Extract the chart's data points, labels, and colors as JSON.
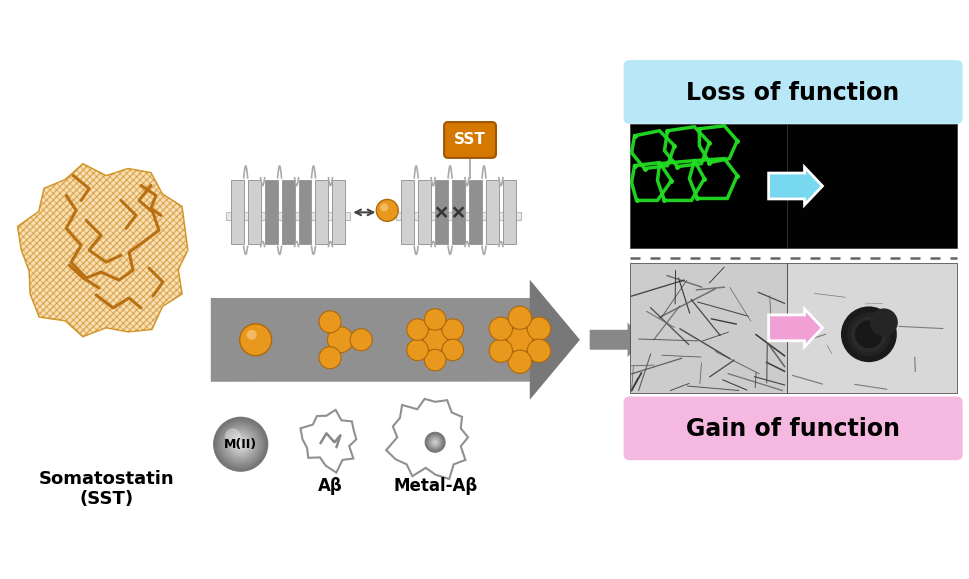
{
  "bg_color": "#ffffff",
  "loss_box_color": "#aaddee",
  "gain_box_color": "#f5aadd",
  "loss_text": "Loss of function",
  "gain_text": "Gain of function",
  "sst_label": "Somatostatin\n(SST)",
  "mii_label": "M(II)",
  "abeta_label": "Aβ",
  "metal_abeta_label": "Metal-Aβ",
  "sst_tag": "SST",
  "orange_color": "#e8981c",
  "dark_orange": "#b06808",
  "gray_arrow_color": "#999999",
  "figsize": [
    9.69,
    5.79
  ],
  "dpi": 100
}
